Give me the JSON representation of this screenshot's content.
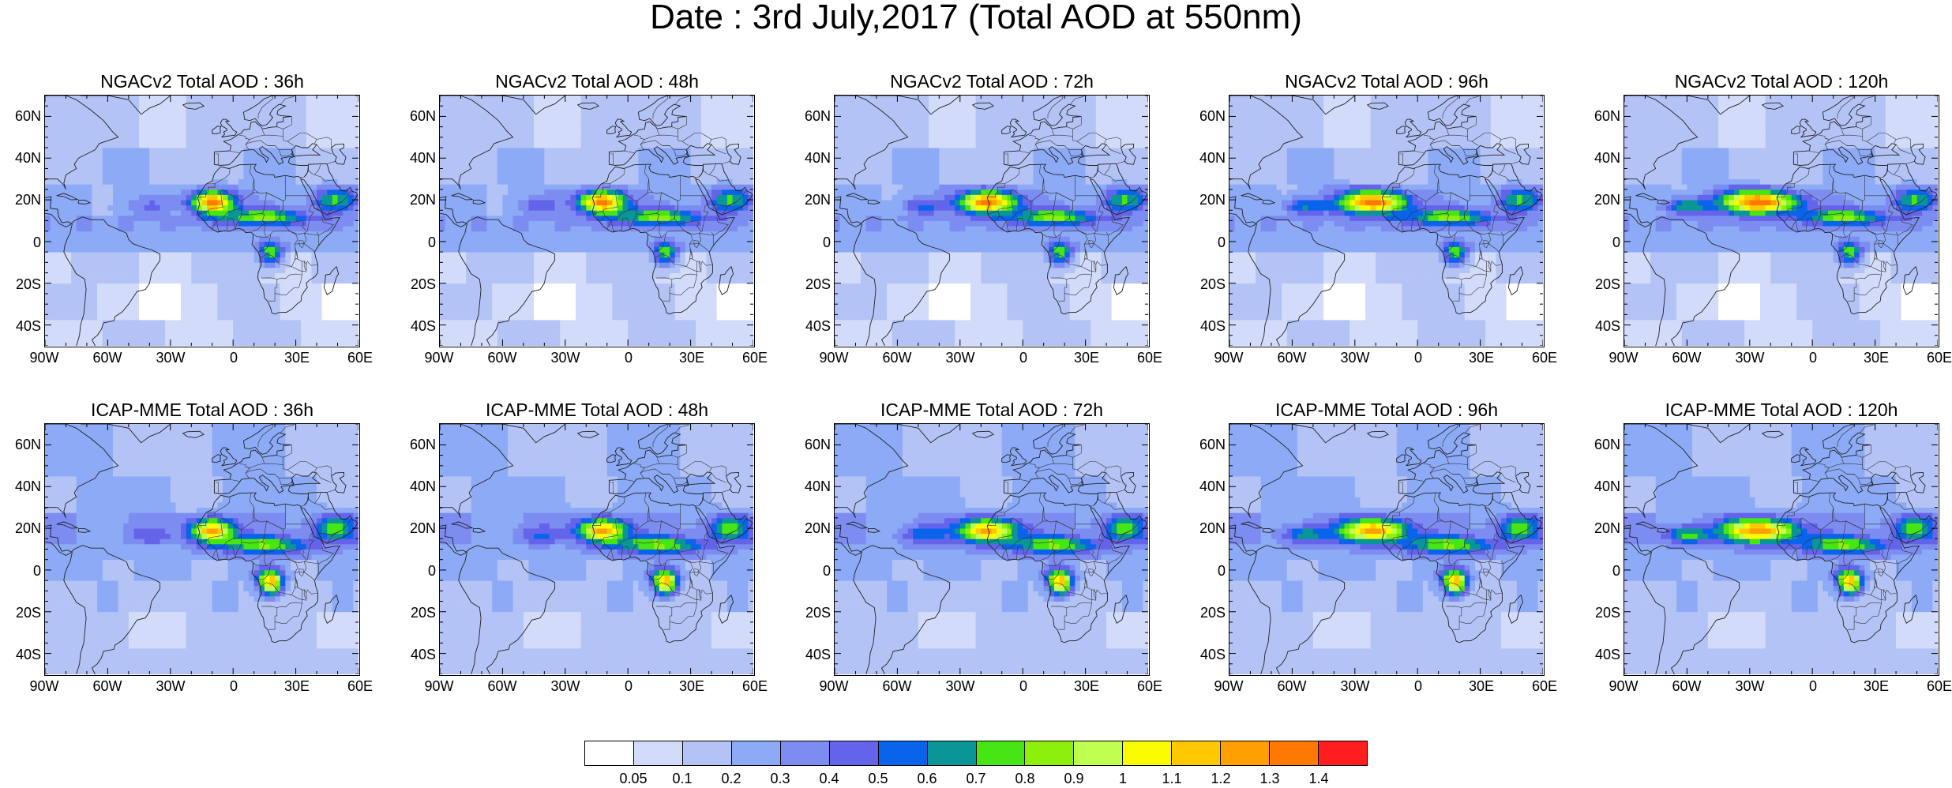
{
  "title": "Date : 3rd July,2017 (Total AOD at 550nm)",
  "panels": [
    {
      "title": "NGACv2 Total AOD : 36h",
      "model": "ngac",
      "lead": 36
    },
    {
      "title": "NGACv2 Total AOD : 48h",
      "model": "ngac",
      "lead": 48
    },
    {
      "title": "NGACv2 Total AOD : 72h",
      "model": "ngac",
      "lead": 72
    },
    {
      "title": "NGACv2 Total AOD : 96h",
      "model": "ngac",
      "lead": 96
    },
    {
      "title": "NGACv2 Total AOD : 120h",
      "model": "ngac",
      "lead": 120
    },
    {
      "title": "ICAP-MME Total AOD : 36h",
      "model": "icap",
      "lead": 36
    },
    {
      "title": "ICAP-MME Total AOD : 48h",
      "model": "icap",
      "lead": 48
    },
    {
      "title": "ICAP-MME Total AOD : 72h",
      "model": "icap",
      "lead": 72
    },
    {
      "title": "ICAP-MME Total AOD : 96h",
      "model": "icap",
      "lead": 96
    },
    {
      "title": "ICAP-MME Total AOD : 120h",
      "model": "icap",
      "lead": 120
    }
  ],
  "map_extent": {
    "lon_min": -90,
    "lon_max": 60,
    "lat_min": -50,
    "lat_max": 70
  },
  "lat_ticks": [
    {
      "value": 60,
      "label": "60N"
    },
    {
      "value": 40,
      "label": "40N"
    },
    {
      "value": 20,
      "label": "20N"
    },
    {
      "value": 0,
      "label": "0"
    },
    {
      "value": -20,
      "label": "20S"
    },
    {
      "value": -40,
      "label": "40S"
    }
  ],
  "lon_ticks": [
    {
      "value": -90,
      "label": "90W"
    },
    {
      "value": -60,
      "label": "60W"
    },
    {
      "value": -30,
      "label": "30W"
    },
    {
      "value": 0,
      "label": "0"
    },
    {
      "value": 30,
      "label": "30E"
    },
    {
      "value": 60,
      "label": "60E"
    }
  ],
  "colorbar": {
    "colors": [
      "#ffffff",
      "#d2dcfa",
      "#b4c3f5",
      "#8caaf5",
      "#7d8cf0",
      "#6464eb",
      "#0a64eb",
      "#0a9696",
      "#46e614",
      "#8cf00a",
      "#beff50",
      "#fafa00",
      "#ffc800",
      "#ffa000",
      "#ff7800",
      "#ff1e1e"
    ],
    "labels": [
      "0.05",
      "0.1",
      "0.2",
      "0.3",
      "0.4",
      "0.5",
      "0.6",
      "0.7",
      "0.8",
      "0.9",
      "1",
      "1.1",
      "1.2",
      "1.3",
      "1.4"
    ]
  }
}
